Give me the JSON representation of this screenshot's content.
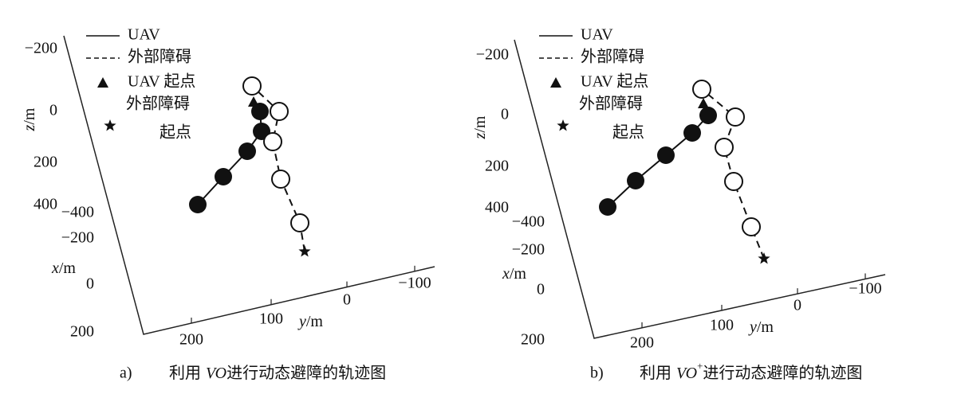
{
  "panels": [
    {
      "legend": {
        "line": "UAV",
        "dashed": "外部障碍",
        "uav_start": "UAV 起点",
        "obstacle_start": [
          "外部障碍",
          "起点"
        ]
      },
      "axes": {
        "z": {
          "var": "z",
          "unit": "/m",
          "ticks": [
            "−200",
            "0",
            "200",
            "400"
          ]
        },
        "x": {
          "var": "x",
          "unit": "/m",
          "ticks": [
            "−400",
            "−200",
            "0",
            "200"
          ]
        },
        "y": {
          "var": "y",
          "unit": "/m",
          "ticks": [
            "200",
            "100",
            "0",
            "−100"
          ]
        }
      },
      "caption": {
        "label": "a)",
        "pre": "利用",
        "method": "VO",
        "sup": "",
        "post": "进行动态避障的轨迹图"
      }
    },
    {
      "legend": {
        "line": "UAV",
        "dashed": "外部障碍",
        "uav_start": "UAV 起点",
        "obstacle_start": [
          "外部障碍",
          "起点"
        ]
      },
      "axes": {
        "z": {
          "var": "z",
          "unit": "/m",
          "ticks": [
            "−200",
            "0",
            "200",
            "400"
          ]
        },
        "x": {
          "var": "x",
          "unit": "/m",
          "ticks": [
            "−400",
            "−200",
            "0",
            "200"
          ]
        },
        "y": {
          "var": "y",
          "unit": "/m",
          "ticks": [
            "200",
            "100",
            "0",
            "−100"
          ]
        }
      },
      "caption": {
        "label": "b)",
        "pre": "利用",
        "method": "VO",
        "sup": "+",
        "post": "进行动态避障的轨迹图"
      }
    }
  ]
}
